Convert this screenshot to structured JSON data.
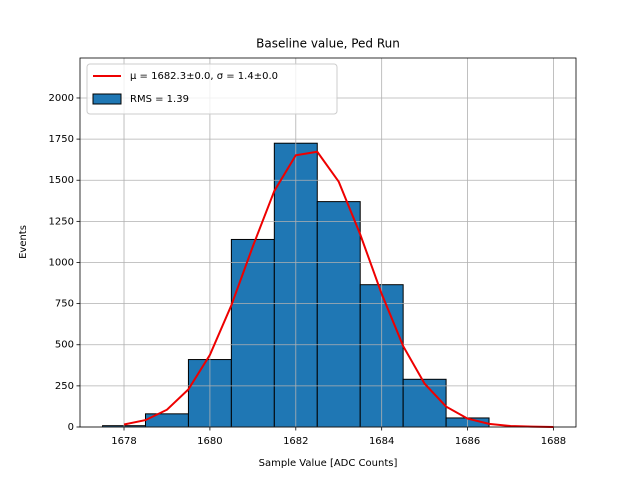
{
  "chart_data": {
    "type": "histogram",
    "title": "Baseline value, Ped Run",
    "x_label": "Sample Value [ADC Counts]",
    "y_label": "Events",
    "bins": [
      1677.5,
      1678.5,
      1679.5,
      1680.5,
      1681.5,
      1682.5,
      1683.5,
      1684.5,
      1685.5,
      1686.5
    ],
    "counts": [
      8,
      80,
      410,
      1140,
      1725,
      1370,
      865,
      290,
      55
    ],
    "name": "RMS = 1.39",
    "color": "#1f77b4",
    "edgecolor": "#000000",
    "fit": {
      "type": "line",
      "name": "μ = 1682.3±0.0, σ = 1.4±0.0",
      "color": "#ee0000",
      "x": [
        1678,
        1678.5,
        1679,
        1679.5,
        1680,
        1680.5,
        1681,
        1681.5,
        1682,
        1682.5,
        1683,
        1683.5,
        1684,
        1684.5,
        1685,
        1685.5,
        1686,
        1686.5,
        1687,
        1687.5,
        1688
      ],
      "values": [
        15,
        42,
        105,
        229,
        438,
        740,
        1098,
        1435,
        1652,
        1673,
        1491,
        1171,
        809,
        492,
        263,
        124,
        51,
        19,
        6,
        2,
        0
      ]
    },
    "xlim": [
      1676.975,
      1688.525
    ],
    "ylim": [
      0,
      2243
    ],
    "xticks": [
      1678,
      1680,
      1682,
      1684,
      1686,
      1688
    ],
    "yticks": [
      0,
      250,
      500,
      750,
      1000,
      1250,
      1500,
      1750,
      2000
    ],
    "grid": true,
    "legend": "upper left"
  }
}
